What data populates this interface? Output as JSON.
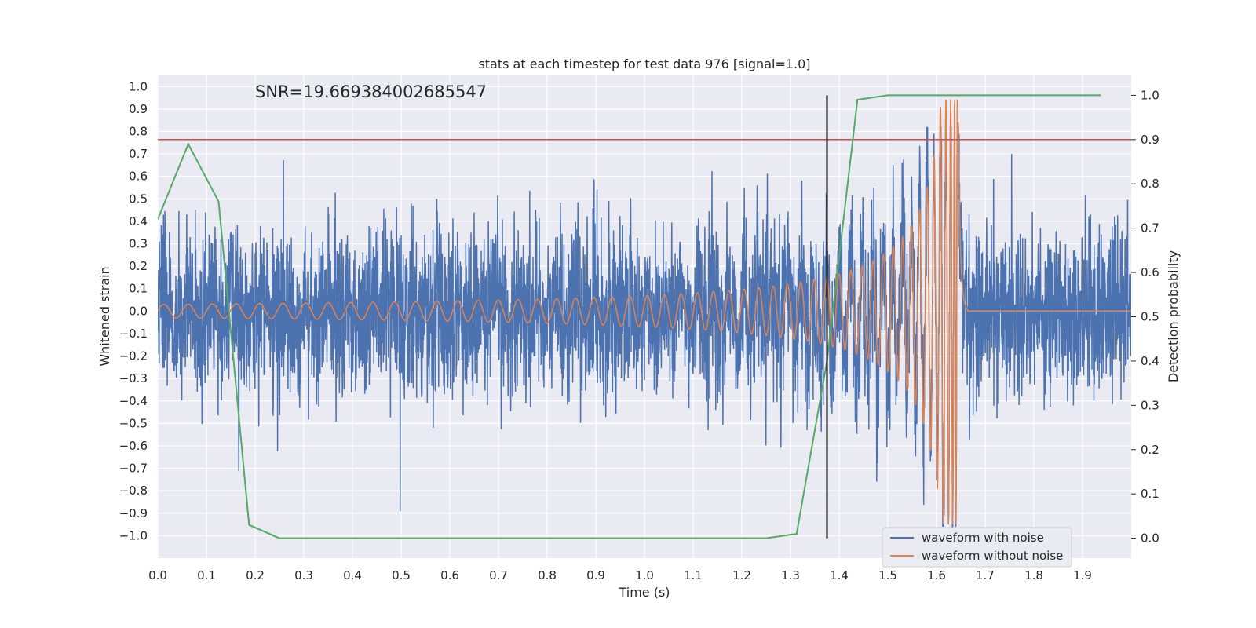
{
  "chart_data": {
    "type": "line",
    "title": "stats at each timestep for test data 976 [signal=1.0]",
    "xlabel": "Time (s)",
    "ylabel": "Whitened strain",
    "y2label": "Detection probability",
    "xlim": [
      0.0,
      2.0
    ],
    "ylim": [
      -1.1,
      1.05
    ],
    "y2lim": [
      -0.045,
      1.045
    ],
    "xticks": [
      "0.0",
      "0.1",
      "0.2",
      "0.3",
      "0.4",
      "0.5",
      "0.6",
      "0.7",
      "0.8",
      "0.9",
      "1.0",
      "1.1",
      "1.2",
      "1.3",
      "1.4",
      "1.5",
      "1.6",
      "1.7",
      "1.8",
      "1.9"
    ],
    "yticks": [
      "1.0",
      "0.9",
      "0.8",
      "0.7",
      "0.6",
      "0.5",
      "0.4",
      "0.3",
      "0.2",
      "0.1",
      "0.0",
      "−0.1",
      "−0.2",
      "−0.3",
      "−0.4",
      "−0.5",
      "−0.6",
      "−0.7",
      "−0.8",
      "−0.9",
      "−1.0"
    ],
    "y2ticks": [
      "1.0",
      "0.9",
      "0.8",
      "0.7",
      "0.6",
      "0.5",
      "0.4",
      "0.3",
      "0.2",
      "0.1",
      "0.0"
    ],
    "annotation": "SNR=19.669384002685547",
    "grid": true,
    "legend_position": "lower-right",
    "series": [
      {
        "name": "waveform with noise",
        "color": "#4c72b0",
        "axis": "left",
        "noise_amplitude": 0.5,
        "sample_rate_hz": 2048
      },
      {
        "name": "waveform without noise",
        "color": "#dd8452",
        "axis": "left",
        "chirp_start_amplitude": 0.03,
        "chirp_peak_amplitude": 0.95,
        "merger_time": 1.645
      },
      {
        "name": "detection probability",
        "color": "#55a868",
        "axis": "right",
        "x": [
          0.0,
          0.0625,
          0.125,
          0.1875,
          0.25,
          0.3125,
          0.375,
          0.4375,
          0.5,
          0.5625,
          0.625,
          0.6875,
          0.75,
          0.8125,
          0.875,
          0.9375,
          1.0,
          1.0625,
          1.125,
          1.1875,
          1.25,
          1.3125,
          1.375,
          1.4375,
          1.5,
          1.5625,
          1.625,
          1.6875,
          1.75,
          1.8125,
          1.875,
          1.9375
        ],
        "values": [
          0.72,
          0.89,
          0.76,
          0.03,
          0.0,
          0.0,
          0.0,
          0.0,
          0.0,
          0.0,
          0.0,
          0.0,
          0.0,
          0.0,
          0.0,
          0.0,
          0.0,
          0.0,
          0.0,
          0.0,
          0.0,
          0.01,
          0.4,
          0.99,
          1.0,
          1.0,
          1.0,
          1.0,
          1.0,
          1.0,
          1.0,
          1.0
        ]
      }
    ],
    "hlines": [
      {
        "axis": "right",
        "value": 0.9,
        "color": "#c44e52"
      }
    ],
    "vlines": [
      {
        "x": 1.375,
        "y2_from": 0.0,
        "y2_to": 1.0,
        "color": "#000000"
      }
    ]
  }
}
